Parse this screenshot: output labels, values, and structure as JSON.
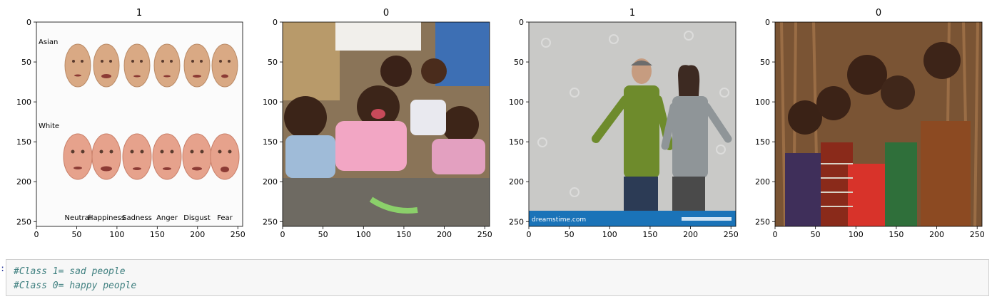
{
  "panels": [
    {
      "title": "1",
      "image": "Grid of Asian and White faces in six expressions",
      "photo_text": {
        "row_labels": [
          "Asian",
          "White"
        ],
        "column_labels": [
          "Neutral",
          "Happiness",
          "Sadness",
          "Anger",
          "Disgust",
          "Fear"
        ]
      }
    },
    {
      "title": "0",
      "image": "Group of laughing children posing close together"
    },
    {
      "title": "1",
      "image": "Man and woman shrugging on grey studio background",
      "photo_text": {
        "watermark_left": "dreamstime.com"
      }
    },
    {
      "title": "0",
      "image": "Smiling children standing together in front of wooden wall"
    }
  ],
  "axes": {
    "x_ticks": [
      "0",
      "50",
      "100",
      "150",
      "200",
      "250"
    ],
    "y_ticks": [
      "0",
      "50",
      "100",
      "150",
      "200",
      "250"
    ],
    "x_tick_values": [
      0,
      50,
      100,
      150,
      200,
      250
    ],
    "y_tick_values": [
      0,
      50,
      100,
      150,
      200,
      250
    ],
    "x_range": [
      0,
      256
    ],
    "y_range": [
      0,
      256
    ]
  },
  "cell": {
    "prompt": ":",
    "code_lines": [
      "#Class 1= sad people",
      "#Class 0= happy people"
    ]
  },
  "colors": {
    "code_comment": "#408080",
    "cell_bg": "#f7f7f7",
    "cell_border": "#cfcfcf"
  }
}
